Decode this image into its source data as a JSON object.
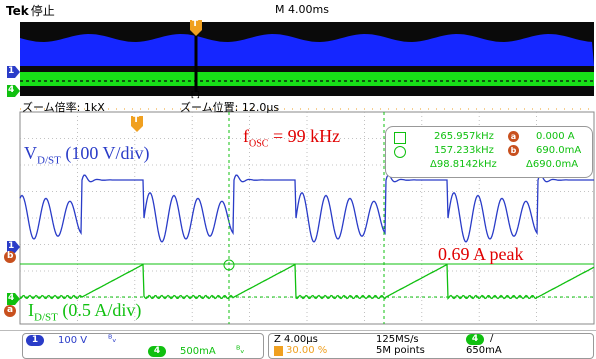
{
  "header": {
    "brand": "Tek",
    "state": "停止",
    "timebase": "M 4.00ms"
  },
  "zoom": {
    "factor_label": "ズーム倍率: 1kX",
    "position_label": "ズーム位置: 12.0μs"
  },
  "annotations": {
    "vdst_main": "V",
    "vdst_sub": "D/ST",
    "vdst_scale": " (100 V/div)",
    "fosc_main": "f",
    "fosc_sub": "OSC",
    "fosc_value": " = 99 kHz",
    "peak": "0.69 A peak",
    "idst_main": "I",
    "idst_sub": "D/ST",
    "idst_scale": " (0.5 A/div)"
  },
  "measurements": {
    "row1": {
      "freq": "265.957kHz",
      "cursor": "a",
      "value": "0.000 A"
    },
    "row2": {
      "freq": "157.233kHz",
      "cursor": "b",
      "value": "690.0mA"
    },
    "row3": {
      "delta_freq": "Δ98.8142kHz",
      "delta_value": "Δ690.0mA"
    }
  },
  "markers": {
    "trigger": "T",
    "ch1": "1",
    "ch4": "4",
    "cursor_a": "a",
    "cursor_b": "b",
    "zoom_cursor": "[ ]"
  },
  "channels": {
    "ch1": {
      "num": "1",
      "scale": "100 V",
      "bw_icon": "ᴮᵥ"
    },
    "ch4": {
      "num": "4",
      "scale": "500mA",
      "bw_icon": "ᴮᵥ"
    }
  },
  "acquisition": {
    "horizontal": "Z 4.00μs",
    "trigger_pos": "30.00 %",
    "sample_rate": "125MS/s",
    "record_length": "5M points",
    "trigger_ch": "4",
    "trigger_slope": "/",
    "trigger_level": "650mA"
  },
  "colors": {
    "ch1": "#2a3cc8",
    "ch4": "#10c010",
    "annotation": "#e00000",
    "trigger": "#f0a020",
    "grid": "#9a9a9a"
  }
}
